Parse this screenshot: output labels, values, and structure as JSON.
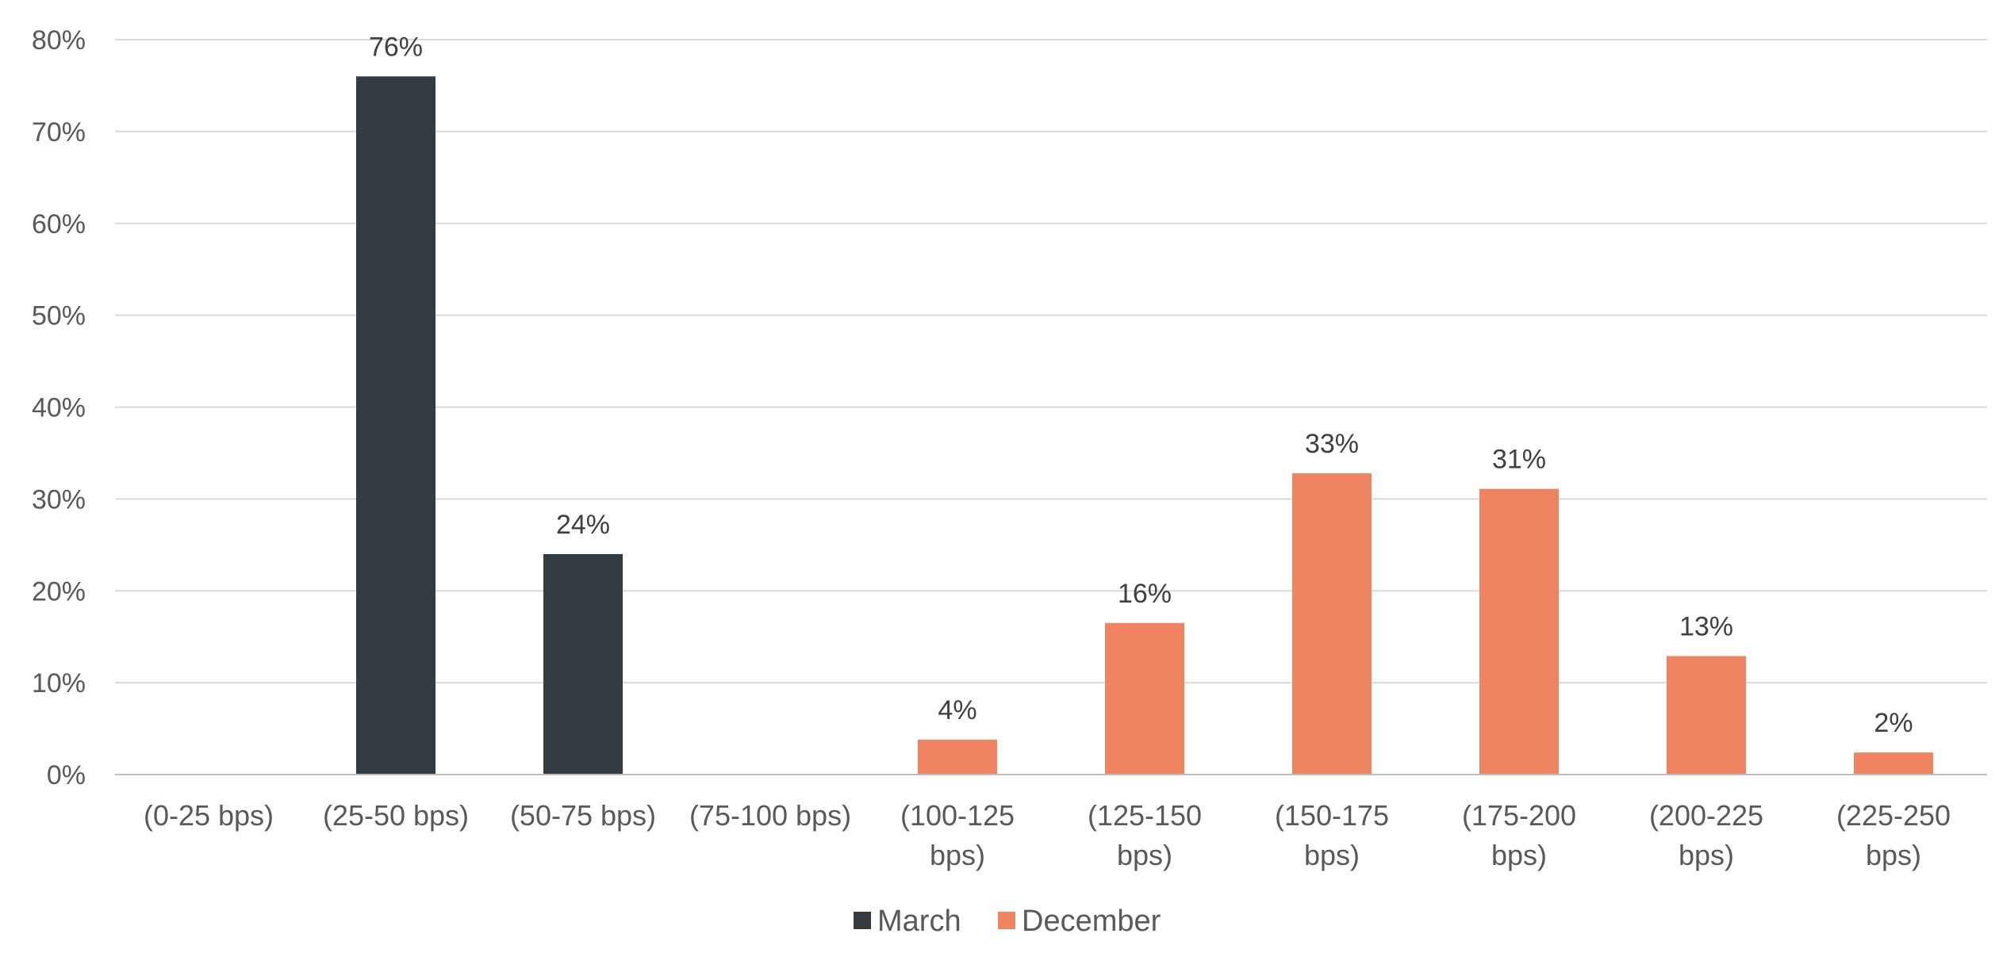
{
  "chart_data": {
    "type": "bar",
    "categories": [
      [
        "(0-25 bps)"
      ],
      [
        "(25-50 bps)"
      ],
      [
        "(50-75 bps)"
      ],
      [
        "(75-100 bps)"
      ],
      [
        "(100-125",
        "bps)"
      ],
      [
        "(125-150",
        "bps)"
      ],
      [
        "(150-175",
        "bps)"
      ],
      [
        "(175-200",
        "bps)"
      ],
      [
        "(200-225",
        "bps)"
      ],
      [
        "(225-250",
        "bps)"
      ]
    ],
    "series": [
      {
        "name": "March",
        "color": "#333a40",
        "values": [
          null,
          76,
          24,
          null,
          null,
          null,
          null,
          null,
          null,
          null
        ],
        "labels": [
          "",
          "76%",
          "24%",
          "",
          "",
          "",
          "",
          "",
          "",
          ""
        ]
      },
      {
        "name": "December",
        "color": "#f08462",
        "values": [
          null,
          null,
          null,
          null,
          3.8,
          16.5,
          32.8,
          31.1,
          12.9,
          2.4
        ],
        "labels": [
          "",
          "",
          "",
          "",
          "4%",
          "16%",
          "33%",
          "31%",
          "13%",
          "2%"
        ]
      }
    ],
    "ylim": [
      0,
      80
    ],
    "yticks": [
      0,
      10,
      20,
      30,
      40,
      50,
      60,
      70,
      80
    ],
    "ytick_labels": [
      "0%",
      "10%",
      "20%",
      "30%",
      "40%",
      "50%",
      "60%",
      "70%",
      "80%"
    ],
    "grid": true,
    "legend_position": "bottom-center",
    "gridline_color": "#d9d9d9",
    "axis_color": "#bfbfbf"
  }
}
